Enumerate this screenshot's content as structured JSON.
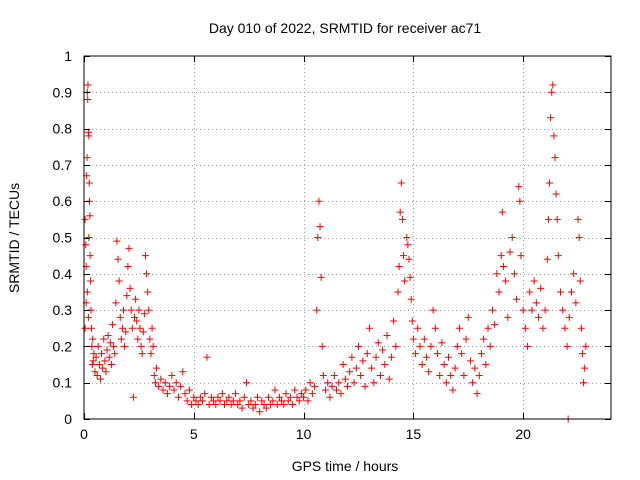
{
  "chart_data": {
    "type": "scatter",
    "title": "Day 010 of 2022, SRMTID for receiver ac71",
    "xlabel": "GPS time / hours",
    "ylabel": "SRMTID / TECUs",
    "xlim": [
      0,
      24
    ],
    "ylim": [
      0,
      1
    ],
    "xticks": [
      0,
      5,
      10,
      15,
      20
    ],
    "xtick_labels": [
      "0",
      "5",
      "10",
      "15",
      "20"
    ],
    "yticks": [
      0,
      0.1,
      0.2,
      0.3,
      0.4,
      0.5,
      0.6,
      0.7,
      0.8,
      0.9,
      1
    ],
    "ytick_labels": [
      "0",
      "0.1",
      "0.2",
      "0.3",
      "0.4",
      "0.5",
      "0.6",
      "0.7",
      "0.8",
      "0.9",
      "1"
    ],
    "grid": true,
    "marker": "+",
    "color": "#ff0000",
    "series": [
      {
        "name": "SRMTID",
        "points": [
          [
            0.05,
            0.55
          ],
          [
            0.08,
            0.48
          ],
          [
            0.1,
            0.42
          ],
          [
            0.12,
            0.67
          ],
          [
            0.14,
            0.72
          ],
          [
            0.15,
            0.9
          ],
          [
            0.17,
            0.88
          ],
          [
            0.18,
            0.92
          ],
          [
            0.2,
            0.79
          ],
          [
            0.22,
            0.78
          ],
          [
            0.24,
            0.65
          ],
          [
            0.25,
            0.6
          ],
          [
            0.27,
            0.56
          ],
          [
            0.28,
            0.45
          ],
          [
            0.3,
            0.38
          ],
          [
            0.32,
            0.3
          ],
          [
            0.34,
            0.25
          ],
          [
            0.36,
            0.2
          ],
          [
            0.38,
            0.15
          ],
          [
            0.1,
            0.32
          ],
          [
            0.15,
            0.35
          ],
          [
            0.2,
            0.28
          ],
          [
            0.22,
            0.5
          ],
          [
            0.05,
            0.25
          ],
          [
            0.4,
            0.22
          ],
          [
            0.42,
            0.16
          ],
          [
            0.45,
            0.18
          ],
          [
            0.5,
            0.13
          ],
          [
            0.55,
            0.17
          ],
          [
            0.6,
            0.12
          ],
          [
            0.65,
            0.2
          ],
          [
            0.7,
            0.15
          ],
          [
            0.75,
            0.11
          ],
          [
            0.8,
            0.18
          ],
          [
            0.85,
            0.14
          ],
          [
            0.9,
            0.22
          ],
          [
            0.95,
            0.16
          ],
          [
            1.0,
            0.13
          ],
          [
            1.05,
            0.19
          ],
          [
            1.1,
            0.23
          ],
          [
            1.15,
            0.17
          ],
          [
            1.2,
            0.21
          ],
          [
            1.25,
            0.15
          ],
          [
            1.3,
            0.26
          ],
          [
            1.35,
            0.2
          ],
          [
            1.4,
            0.18
          ],
          [
            1.45,
            0.32
          ],
          [
            1.5,
            0.49
          ],
          [
            1.55,
            0.44
          ],
          [
            1.6,
            0.38
          ],
          [
            1.65,
            0.28
          ],
          [
            1.7,
            0.22
          ],
          [
            1.75,
            0.25
          ],
          [
            1.8,
            0.3
          ],
          [
            1.85,
            0.2
          ],
          [
            1.9,
            0.24
          ],
          [
            1.95,
            0.34
          ],
          [
            2.0,
            0.42
          ],
          [
            2.05,
            0.47
          ],
          [
            2.1,
            0.36
          ],
          [
            2.15,
            0.3
          ],
          [
            2.2,
            0.25
          ],
          [
            2.25,
            0.06
          ],
          [
            2.3,
            0.28
          ],
          [
            2.35,
            0.33
          ],
          [
            2.4,
            0.27
          ],
          [
            2.45,
            0.22
          ],
          [
            2.5,
            0.3
          ],
          [
            2.55,
            0.25
          ],
          [
            2.6,
            0.2
          ],
          [
            2.65,
            0.18
          ],
          [
            2.7,
            0.24
          ],
          [
            2.75,
            0.29
          ],
          [
            2.8,
            0.45
          ],
          [
            2.85,
            0.4
          ],
          [
            2.9,
            0.35
          ],
          [
            2.95,
            0.3
          ],
          [
            3.0,
            0.22
          ],
          [
            3.05,
            0.18
          ],
          [
            3.1,
            0.25
          ],
          [
            3.15,
            0.2
          ],
          [
            3.2,
            0.12
          ],
          [
            3.25,
            0.1
          ],
          [
            3.3,
            0.14
          ],
          [
            3.4,
            0.09
          ],
          [
            3.5,
            0.11
          ],
          [
            3.6,
            0.08
          ],
          [
            3.7,
            0.1
          ],
          [
            3.8,
            0.07
          ],
          [
            3.9,
            0.09
          ],
          [
            4.0,
            0.12
          ],
          [
            4.1,
            0.08
          ],
          [
            4.2,
            0.1
          ],
          [
            4.3,
            0.06
          ],
          [
            4.4,
            0.09
          ],
          [
            4.5,
            0.13
          ],
          [
            4.6,
            0.07
          ],
          [
            4.7,
            0.05
          ],
          [
            4.8,
            0.08
          ],
          [
            4.9,
            0.04
          ],
          [
            5.0,
            0.06
          ],
          [
            5.1,
            0.05
          ],
          [
            5.2,
            0.04
          ],
          [
            5.3,
            0.06
          ],
          [
            5.4,
            0.05
          ],
          [
            5.5,
            0.07
          ],
          [
            5.6,
            0.17
          ],
          [
            5.7,
            0.04
          ],
          [
            5.8,
            0.06
          ],
          [
            5.9,
            0.05
          ],
          [
            6.0,
            0.04
          ],
          [
            6.1,
            0.06
          ],
          [
            6.2,
            0.05
          ],
          [
            6.3,
            0.07
          ],
          [
            6.4,
            0.04
          ],
          [
            6.5,
            0.05
          ],
          [
            6.6,
            0.06
          ],
          [
            6.7,
            0.04
          ],
          [
            6.8,
            0.05
          ],
          [
            6.9,
            0.07
          ],
          [
            7.0,
            0.04
          ],
          [
            7.1,
            0.05
          ],
          [
            7.2,
            0.03
          ],
          [
            7.3,
            0.06
          ],
          [
            7.4,
            0.1
          ],
          [
            7.5,
            0.04
          ],
          [
            7.6,
            0.05
          ],
          [
            7.7,
            0.03
          ],
          [
            7.8,
            0.04
          ],
          [
            7.9,
            0.06
          ],
          [
            8.0,
            0.02
          ],
          [
            8.1,
            0.05
          ],
          [
            8.2,
            0.04
          ],
          [
            8.3,
            0.03
          ],
          [
            8.4,
            0.06
          ],
          [
            8.5,
            0.04
          ],
          [
            8.6,
            0.05
          ],
          [
            8.7,
            0.08
          ],
          [
            8.8,
            0.04
          ],
          [
            8.9,
            0.06
          ],
          [
            9.0,
            0.05
          ],
          [
            9.1,
            0.04
          ],
          [
            9.2,
            0.07
          ],
          [
            9.3,
            0.05
          ],
          [
            9.4,
            0.06
          ],
          [
            9.5,
            0.04
          ],
          [
            9.6,
            0.08
          ],
          [
            9.7,
            0.06
          ],
          [
            9.8,
            0.05
          ],
          [
            9.9,
            0.07
          ],
          [
            10.0,
            0.06
          ],
          [
            10.1,
            0.08
          ],
          [
            10.2,
            0.05
          ],
          [
            10.3,
            0.1
          ],
          [
            10.4,
            0.07
          ],
          [
            10.5,
            0.09
          ],
          [
            10.6,
            0.3
          ],
          [
            10.65,
            0.5
          ],
          [
            10.7,
            0.6
          ],
          [
            10.75,
            0.53
          ],
          [
            10.8,
            0.39
          ],
          [
            10.85,
            0.2
          ],
          [
            10.9,
            0.12
          ],
          [
            11.0,
            0.08
          ],
          [
            11.1,
            0.1
          ],
          [
            11.2,
            0.06
          ],
          [
            11.3,
            0.09
          ],
          [
            11.4,
            0.12
          ],
          [
            11.5,
            0.08
          ],
          [
            11.6,
            0.1
          ],
          [
            11.7,
            0.07
          ],
          [
            11.8,
            0.15
          ],
          [
            11.9,
            0.11
          ],
          [
            12.0,
            0.09
          ],
          [
            12.1,
            0.13
          ],
          [
            12.2,
            0.17
          ],
          [
            12.3,
            0.1
          ],
          [
            12.4,
            0.14
          ],
          [
            12.5,
            0.2
          ],
          [
            12.6,
            0.12
          ],
          [
            12.7,
            0.16
          ],
          [
            12.8,
            0.09
          ],
          [
            12.9,
            0.18
          ],
          [
            13.0,
            0.25
          ],
          [
            13.1,
            0.14
          ],
          [
            13.2,
            0.1
          ],
          [
            13.3,
            0.17
          ],
          [
            13.4,
            0.21
          ],
          [
            13.5,
            0.12
          ],
          [
            13.6,
            0.19
          ],
          [
            13.7,
            0.15
          ],
          [
            13.8,
            0.23
          ],
          [
            13.9,
            0.11
          ],
          [
            14.0,
            0.17
          ],
          [
            14.1,
            0.27
          ],
          [
            14.2,
            0.2
          ],
          [
            14.3,
            0.35
          ],
          [
            14.35,
            0.42
          ],
          [
            14.4,
            0.57
          ],
          [
            14.45,
            0.65
          ],
          [
            14.5,
            0.55
          ],
          [
            14.55,
            0.45
          ],
          [
            14.6,
            0.38
          ],
          [
            14.7,
            0.5
          ],
          [
            14.75,
            0.48
          ],
          [
            14.8,
            0.44
          ],
          [
            14.85,
            0.39
          ],
          [
            14.9,
            0.33
          ],
          [
            14.95,
            0.27
          ],
          [
            15.0,
            0.22
          ],
          [
            15.1,
            0.18
          ],
          [
            15.2,
            0.25
          ],
          [
            15.3,
            0.2
          ],
          [
            15.4,
            0.15
          ],
          [
            15.5,
            0.22
          ],
          [
            15.6,
            0.17
          ],
          [
            15.7,
            0.13
          ],
          [
            15.8,
            0.2
          ],
          [
            15.9,
            0.3
          ],
          [
            16.0,
            0.25
          ],
          [
            16.1,
            0.18
          ],
          [
            16.2,
            0.12
          ],
          [
            16.3,
            0.21
          ],
          [
            16.4,
            0.15
          ],
          [
            16.5,
            0.1
          ],
          [
            16.6,
            0.17
          ],
          [
            16.7,
            0.12
          ],
          [
            16.8,
            0.08
          ],
          [
            16.9,
            0.14
          ],
          [
            17.0,
            0.2
          ],
          [
            17.1,
            0.25
          ],
          [
            17.2,
            0.18
          ],
          [
            17.3,
            0.12
          ],
          [
            17.4,
            0.22
          ],
          [
            17.5,
            0.28
          ],
          [
            17.6,
            0.16
          ],
          [
            17.7,
            0.1
          ],
          [
            17.8,
            0.14
          ],
          [
            17.9,
            0.07
          ],
          [
            18.0,
            0.12
          ],
          [
            18.1,
            0.18
          ],
          [
            18.2,
            0.22
          ],
          [
            18.3,
            0.15
          ],
          [
            18.4,
            0.25
          ],
          [
            18.5,
            0.2
          ],
          [
            18.6,
            0.3
          ],
          [
            18.7,
            0.26
          ],
          [
            18.8,
            0.4
          ],
          [
            18.9,
            0.35
          ],
          [
            19.0,
            0.45
          ],
          [
            19.05,
            0.57
          ],
          [
            19.1,
            0.42
          ],
          [
            19.2,
            0.38
          ],
          [
            19.3,
            0.28
          ],
          [
            19.4,
            0.46
          ],
          [
            19.5,
            0.5
          ],
          [
            19.6,
            0.4
          ],
          [
            19.7,
            0.33
          ],
          [
            19.8,
            0.64
          ],
          [
            19.85,
            0.6
          ],
          [
            19.9,
            0.45
          ],
          [
            20.0,
            0.3
          ],
          [
            20.1,
            0.25
          ],
          [
            20.2,
            0.2
          ],
          [
            20.3,
            0.35
          ],
          [
            20.4,
            0.3
          ],
          [
            20.5,
            0.38
          ],
          [
            20.6,
            0.32
          ],
          [
            20.7,
            0.28
          ],
          [
            20.8,
            0.36
          ],
          [
            20.9,
            0.25
          ],
          [
            21.0,
            0.3
          ],
          [
            21.1,
            0.44
          ],
          [
            21.15,
            0.55
          ],
          [
            21.2,
            0.65
          ],
          [
            21.25,
            0.83
          ],
          [
            21.3,
            0.9
          ],
          [
            21.35,
            0.92
          ],
          [
            21.4,
            0.78
          ],
          [
            21.45,
            0.72
          ],
          [
            21.5,
            0.62
          ],
          [
            21.55,
            0.55
          ],
          [
            21.6,
            0.45
          ],
          [
            21.7,
            0.35
          ],
          [
            21.8,
            0.3
          ],
          [
            21.9,
            0.25
          ],
          [
            22.0,
            0.2
          ],
          [
            22.05,
            0.0
          ],
          [
            22.1,
            0.28
          ],
          [
            22.2,
            0.35
          ],
          [
            22.3,
            0.4
          ],
          [
            22.4,
            0.32
          ],
          [
            22.5,
            0.55
          ],
          [
            22.55,
            0.5
          ],
          [
            22.6,
            0.38
          ],
          [
            22.65,
            0.25
          ],
          [
            22.7,
            0.18
          ],
          [
            22.75,
            0.1
          ],
          [
            22.8,
            0.14
          ],
          [
            22.85,
            0.2
          ]
        ]
      }
    ]
  }
}
